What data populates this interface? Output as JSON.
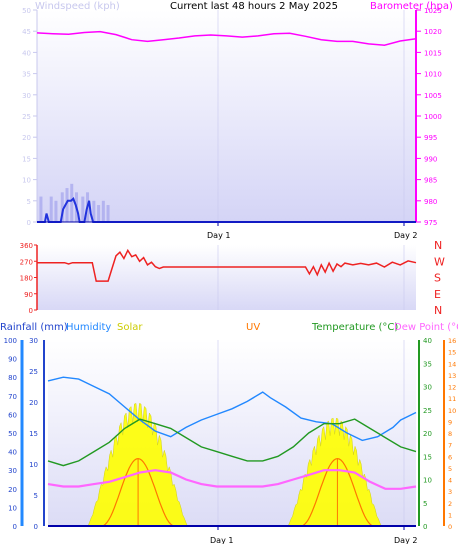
{
  "title": "Current last 48 hours 2 May 2025",
  "colors": {
    "wind": "#2233dd",
    "wind_label": "#c8c8ee",
    "baro": "#ff00ff",
    "dir": "#ee2222",
    "rain": "#2244cc",
    "humidity": "#2288ff",
    "solar": "#ffff00",
    "uv": "#ff7700",
    "temp": "#229922",
    "dew": "#ff66ff",
    "plot_bg_top": "#d8d8f8",
    "plot_bg_bottom": "#ffffff"
  },
  "x_axis": {
    "labels": [
      "Day 1",
      "Day 2"
    ]
  },
  "chart_data": [
    {
      "type": "line",
      "id": "wind_baro",
      "title": "Current last 48 hours 2 May 2025",
      "left_label": "Windspeed (kph)",
      "right_label": "Barometer (hpa)",
      "left_ticks": [
        0,
        5,
        10,
        15,
        20,
        25,
        30,
        35,
        40,
        45,
        50
      ],
      "left_ylim": [
        0,
        50
      ],
      "right_ticks": [
        975,
        980,
        985,
        990,
        995,
        1000,
        1005,
        1010,
        1015,
        1020,
        1025
      ],
      "right_ylim": [
        975,
        1025
      ],
      "x_range_hours": [
        0,
        48
      ],
      "series": [
        {
          "name": "Barometer",
          "axis": "right",
          "points": [
            [
              0,
              1019.6
            ],
            [
              2,
              1019.4
            ],
            [
              4,
              1019.3
            ],
            [
              6,
              1019.7
            ],
            [
              8,
              1019.9
            ],
            [
              10,
              1019.2
            ],
            [
              12,
              1018.0
            ],
            [
              14,
              1017.6
            ],
            [
              16,
              1018.0
            ],
            [
              18,
              1018.4
            ],
            [
              20,
              1018.9
            ],
            [
              22,
              1019.1
            ],
            [
              24,
              1018.9
            ],
            [
              26,
              1018.6
            ],
            [
              28,
              1018.9
            ],
            [
              30,
              1019.4
            ],
            [
              32,
              1019.5
            ],
            [
              34,
              1018.8
            ],
            [
              36,
              1018.0
            ],
            [
              38,
              1017.6
            ],
            [
              40,
              1017.6
            ],
            [
              42,
              1017.0
            ],
            [
              44,
              1016.7
            ],
            [
              46,
              1017.7
            ],
            [
              48,
              1018.2
            ]
          ]
        },
        {
          "name": "Windspeed",
          "axis": "left",
          "points": [
            [
              0,
              0
            ],
            [
              1.0,
              0
            ],
            [
              1.2,
              2
            ],
            [
              1.5,
              0
            ],
            [
              3.0,
              0
            ],
            [
              3.3,
              3
            ],
            [
              3.6,
              4
            ],
            [
              3.9,
              5
            ],
            [
              4.3,
              5
            ],
            [
              4.6,
              5.5
            ],
            [
              4.9,
              4
            ],
            [
              5.2,
              2
            ],
            [
              5.4,
              0
            ],
            [
              6.0,
              0
            ],
            [
              6.3,
              3
            ],
            [
              6.6,
              5
            ],
            [
              6.8,
              2
            ],
            [
              7.1,
              0
            ],
            [
              48,
              0
            ]
          ]
        },
        {
          "name": "Gust",
          "axis": "left",
          "points": [
            [
              0.5,
              6
            ],
            [
              1.8,
              6
            ],
            [
              2.4,
              5
            ],
            [
              3.2,
              7
            ],
            [
              3.8,
              8
            ],
            [
              4.4,
              9
            ],
            [
              5.0,
              7
            ],
            [
              5.8,
              6
            ],
            [
              6.4,
              7
            ],
            [
              7.2,
              5
            ],
            [
              7.8,
              4
            ],
            [
              8.4,
              5
            ],
            [
              9.0,
              4
            ]
          ]
        }
      ]
    },
    {
      "type": "line",
      "id": "direction",
      "left_ticks": [
        0,
        90,
        180,
        270,
        360
      ],
      "left_ylim": [
        0,
        360
      ],
      "right_labels": [
        "N",
        "W",
        "S",
        "E",
        "N"
      ],
      "x_range_hours": [
        0,
        48
      ],
      "series": [
        {
          "name": "Wind direction",
          "points": [
            [
              0,
              262
            ],
            [
              3.5,
              262
            ],
            [
              4,
              255
            ],
            [
              4.5,
              262
            ],
            [
              7,
              262
            ],
            [
              7.5,
              160
            ],
            [
              9,
              160
            ],
            [
              9.5,
              230
            ],
            [
              10,
              300
            ],
            [
              10.5,
              320
            ],
            [
              11,
              285
            ],
            [
              11.5,
              330
            ],
            [
              12,
              295
            ],
            [
              12.5,
              305
            ],
            [
              13,
              270
            ],
            [
              13.5,
              290
            ],
            [
              14,
              250
            ],
            [
              14.5,
              265
            ],
            [
              15,
              240
            ],
            [
              15.5,
              230
            ],
            [
              16,
              238
            ],
            [
              24,
              238
            ],
            [
              30,
              238
            ],
            [
              34,
              238
            ],
            [
              34.5,
              200
            ],
            [
              35,
              240
            ],
            [
              35.5,
              195
            ],
            [
              36,
              250
            ],
            [
              36.5,
              210
            ],
            [
              37,
              260
            ],
            [
              37.5,
              215
            ],
            [
              38,
              255
            ],
            [
              38.5,
              240
            ],
            [
              39,
              260
            ],
            [
              40,
              250
            ],
            [
              41,
              258
            ],
            [
              42,
              250
            ],
            [
              43,
              260
            ],
            [
              44,
              238
            ],
            [
              45,
              265
            ],
            [
              46,
              250
            ],
            [
              47,
              272
            ],
            [
              48,
              262
            ]
          ]
        }
      ]
    },
    {
      "type": "line",
      "id": "temp_group",
      "labels": [
        "Rainfall (mm)",
        "Humidity",
        "Solar",
        "UV",
        "Temperature (°C)",
        "Dew Point (°C)"
      ],
      "rain_ticks": [
        0,
        5,
        10,
        15,
        20,
        25,
        30
      ],
      "humidity_ticks": [
        0,
        10,
        20,
        30,
        40,
        50,
        60,
        70,
        80,
        90,
        100
      ],
      "temp_ticks": [
        0,
        5,
        10,
        15,
        20,
        25,
        30,
        35,
        40
      ],
      "uv_ticks": [
        0,
        1,
        2,
        3,
        4,
        5,
        6,
        7,
        8,
        9,
        10,
        11,
        12,
        13,
        14,
        15,
        16
      ],
      "humidity_ylim": [
        0,
        100
      ],
      "temp_ylim": [
        0,
        40
      ],
      "uv_ylim": [
        0,
        16
      ],
      "x_range_hours": [
        0,
        48
      ],
      "series": [
        {
          "name": "Humidity",
          "points": [
            [
              0,
              78
            ],
            [
              2,
              80
            ],
            [
              4,
              79
            ],
            [
              6,
              75
            ],
            [
              8,
              71
            ],
            [
              10,
              64
            ],
            [
              12,
              57
            ],
            [
              14,
              51
            ],
            [
              16,
              48
            ],
            [
              18,
              53
            ],
            [
              20,
              57
            ],
            [
              22,
              60
            ],
            [
              24,
              63
            ],
            [
              26,
              67
            ],
            [
              28,
              72
            ],
            [
              29,
              69
            ],
            [
              31,
              64
            ],
            [
              33,
              58
            ],
            [
              35,
              56
            ],
            [
              37,
              55
            ],
            [
              39,
              50
            ],
            [
              41,
              46
            ],
            [
              43,
              48
            ],
            [
              45,
              53
            ],
            [
              46,
              57
            ],
            [
              48,
              61
            ]
          ]
        },
        {
          "name": "Temperature",
          "points": [
            [
              0,
              14
            ],
            [
              2,
              13
            ],
            [
              4,
              14
            ],
            [
              6,
              16
            ],
            [
              8,
              18
            ],
            [
              10,
              21
            ],
            [
              12,
              23
            ],
            [
              14,
              22
            ],
            [
              16,
              21
            ],
            [
              18,
              19
            ],
            [
              20,
              17
            ],
            [
              22,
              16
            ],
            [
              24,
              15
            ],
            [
              26,
              14
            ],
            [
              28,
              14
            ],
            [
              30,
              15
            ],
            [
              32,
              17
            ],
            [
              34,
              20
            ],
            [
              36,
              22
            ],
            [
              38,
              22
            ],
            [
              40,
              23
            ],
            [
              42,
              21
            ],
            [
              44,
              19
            ],
            [
              46,
              17
            ],
            [
              48,
              16
            ]
          ]
        },
        {
          "name": "Dew Point",
          "points": [
            [
              0,
              9
            ],
            [
              2,
              8.5
            ],
            [
              4,
              8.5
            ],
            [
              6,
              9
            ],
            [
              8,
              9.5
            ],
            [
              10,
              10.5
            ],
            [
              12,
              11.5
            ],
            [
              14,
              12
            ],
            [
              16,
              11.5
            ],
            [
              18,
              10
            ],
            [
              20,
              9
            ],
            [
              22,
              8.5
            ],
            [
              24,
              8.5
            ],
            [
              26,
              8.5
            ],
            [
              28,
              8.5
            ],
            [
              30,
              9
            ],
            [
              32,
              10
            ],
            [
              34,
              11
            ],
            [
              36,
              12
            ],
            [
              38,
              12
            ],
            [
              40,
              11.5
            ],
            [
              42,
              9.5
            ],
            [
              44,
              8
            ],
            [
              46,
              8
            ],
            [
              48,
              8.5
            ]
          ]
        },
        {
          "name": "Rainfall",
          "points": [
            [
              0,
              0
            ],
            [
              48,
              0
            ]
          ]
        }
      ]
    }
  ]
}
